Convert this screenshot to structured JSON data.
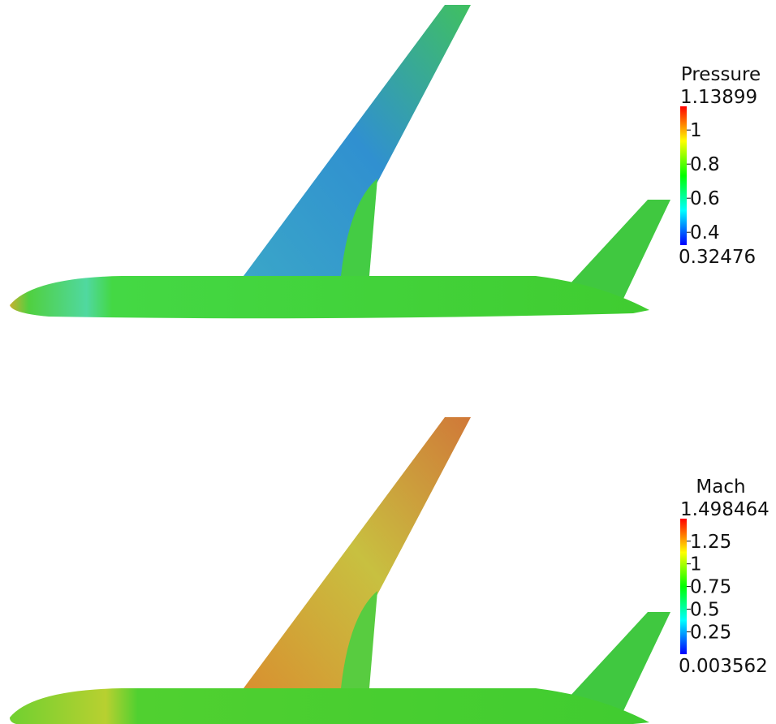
{
  "panels": [
    {
      "title": "Pressure",
      "max": 1.13899,
      "min": 0.32476,
      "ticks": [
        1,
        0.8,
        0.6,
        0.4
      ]
    },
    {
      "title": "Mach",
      "max": 1.498464,
      "min": 0.003562,
      "ticks": [
        1.25,
        1,
        0.75,
        0.5,
        0.25
      ]
    }
  ]
}
